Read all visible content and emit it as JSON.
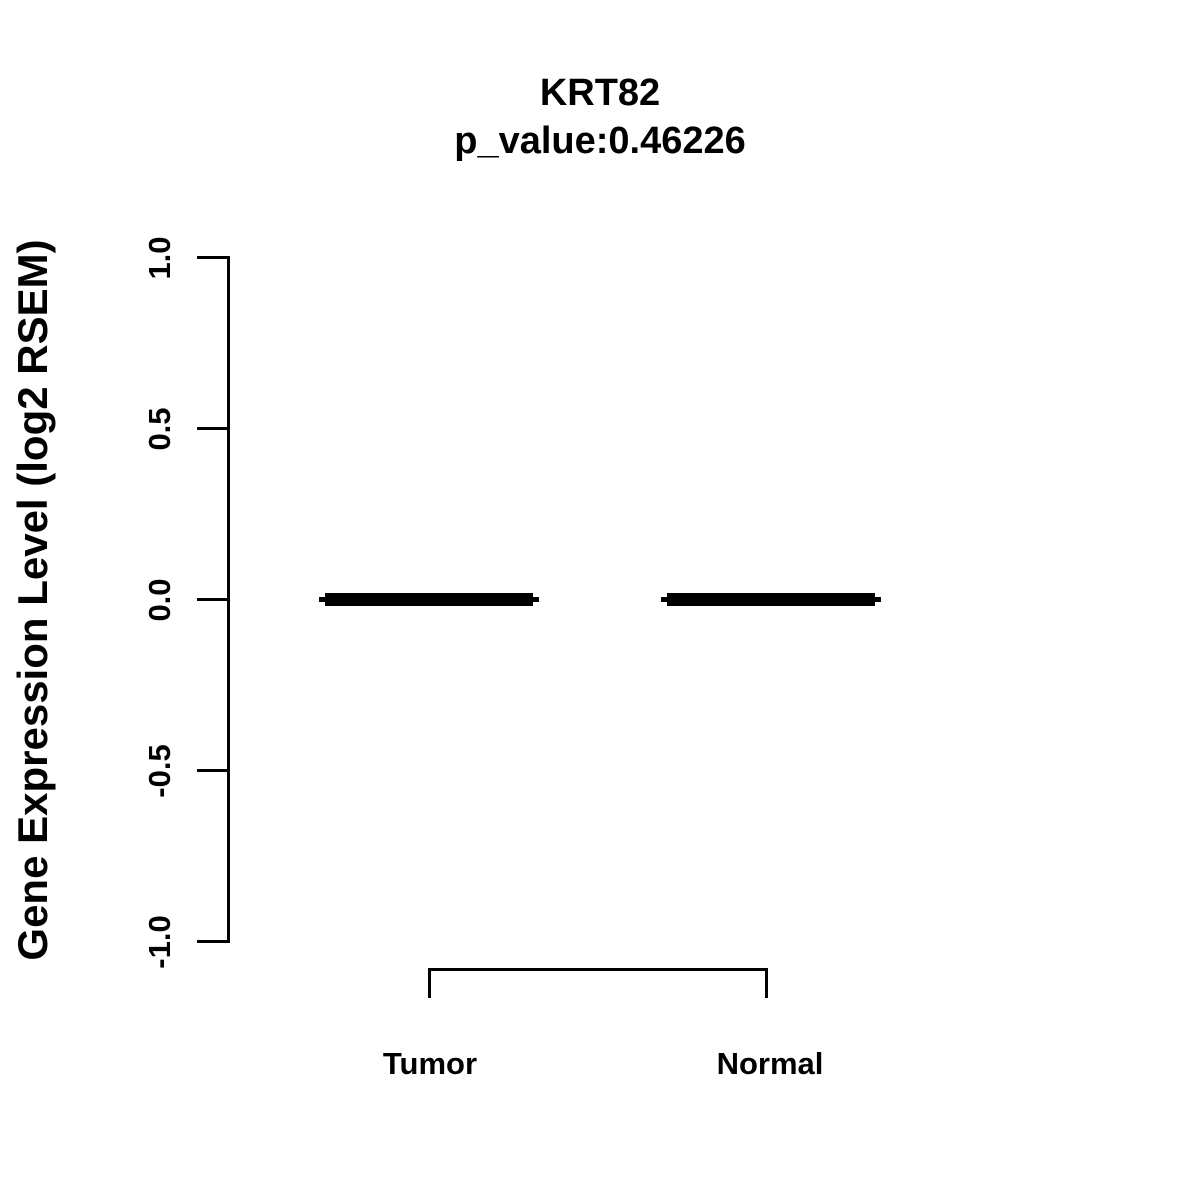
{
  "figure": {
    "background_color": "#ffffff",
    "ink_color": "#000000"
  },
  "chart_data": {
    "type": "boxplot",
    "title": "KRT82",
    "subtitle": "p_value:0.46226",
    "gene": "KRT82",
    "p_value": 0.46226,
    "ylabel": "Gene Expression Level (log2 RSEM)",
    "xlabel": "",
    "ylim": [
      -1.0,
      1.0
    ],
    "ytick_values": [
      1.0,
      0.5,
      0.0,
      -0.5,
      -1.0
    ],
    "ytick_labels": [
      "1.0",
      "0.5",
      "0.0",
      "-0.5",
      "-1.0"
    ],
    "categories": [
      "Tumor",
      "Normal"
    ],
    "series": [
      {
        "name": "Tumor",
        "median": 0.0,
        "q1": 0.0,
        "q3": 0.0,
        "whisker_low": 0.0,
        "whisker_high": 0.0
      },
      {
        "name": "Normal",
        "median": 0.0,
        "q1": 0.0,
        "q3": 0.0,
        "whisker_low": 0.0,
        "whisker_high": 0.0
      }
    ],
    "grid": false,
    "legend_position": "none",
    "comparison_bracket": [
      "Tumor",
      "Normal"
    ]
  }
}
